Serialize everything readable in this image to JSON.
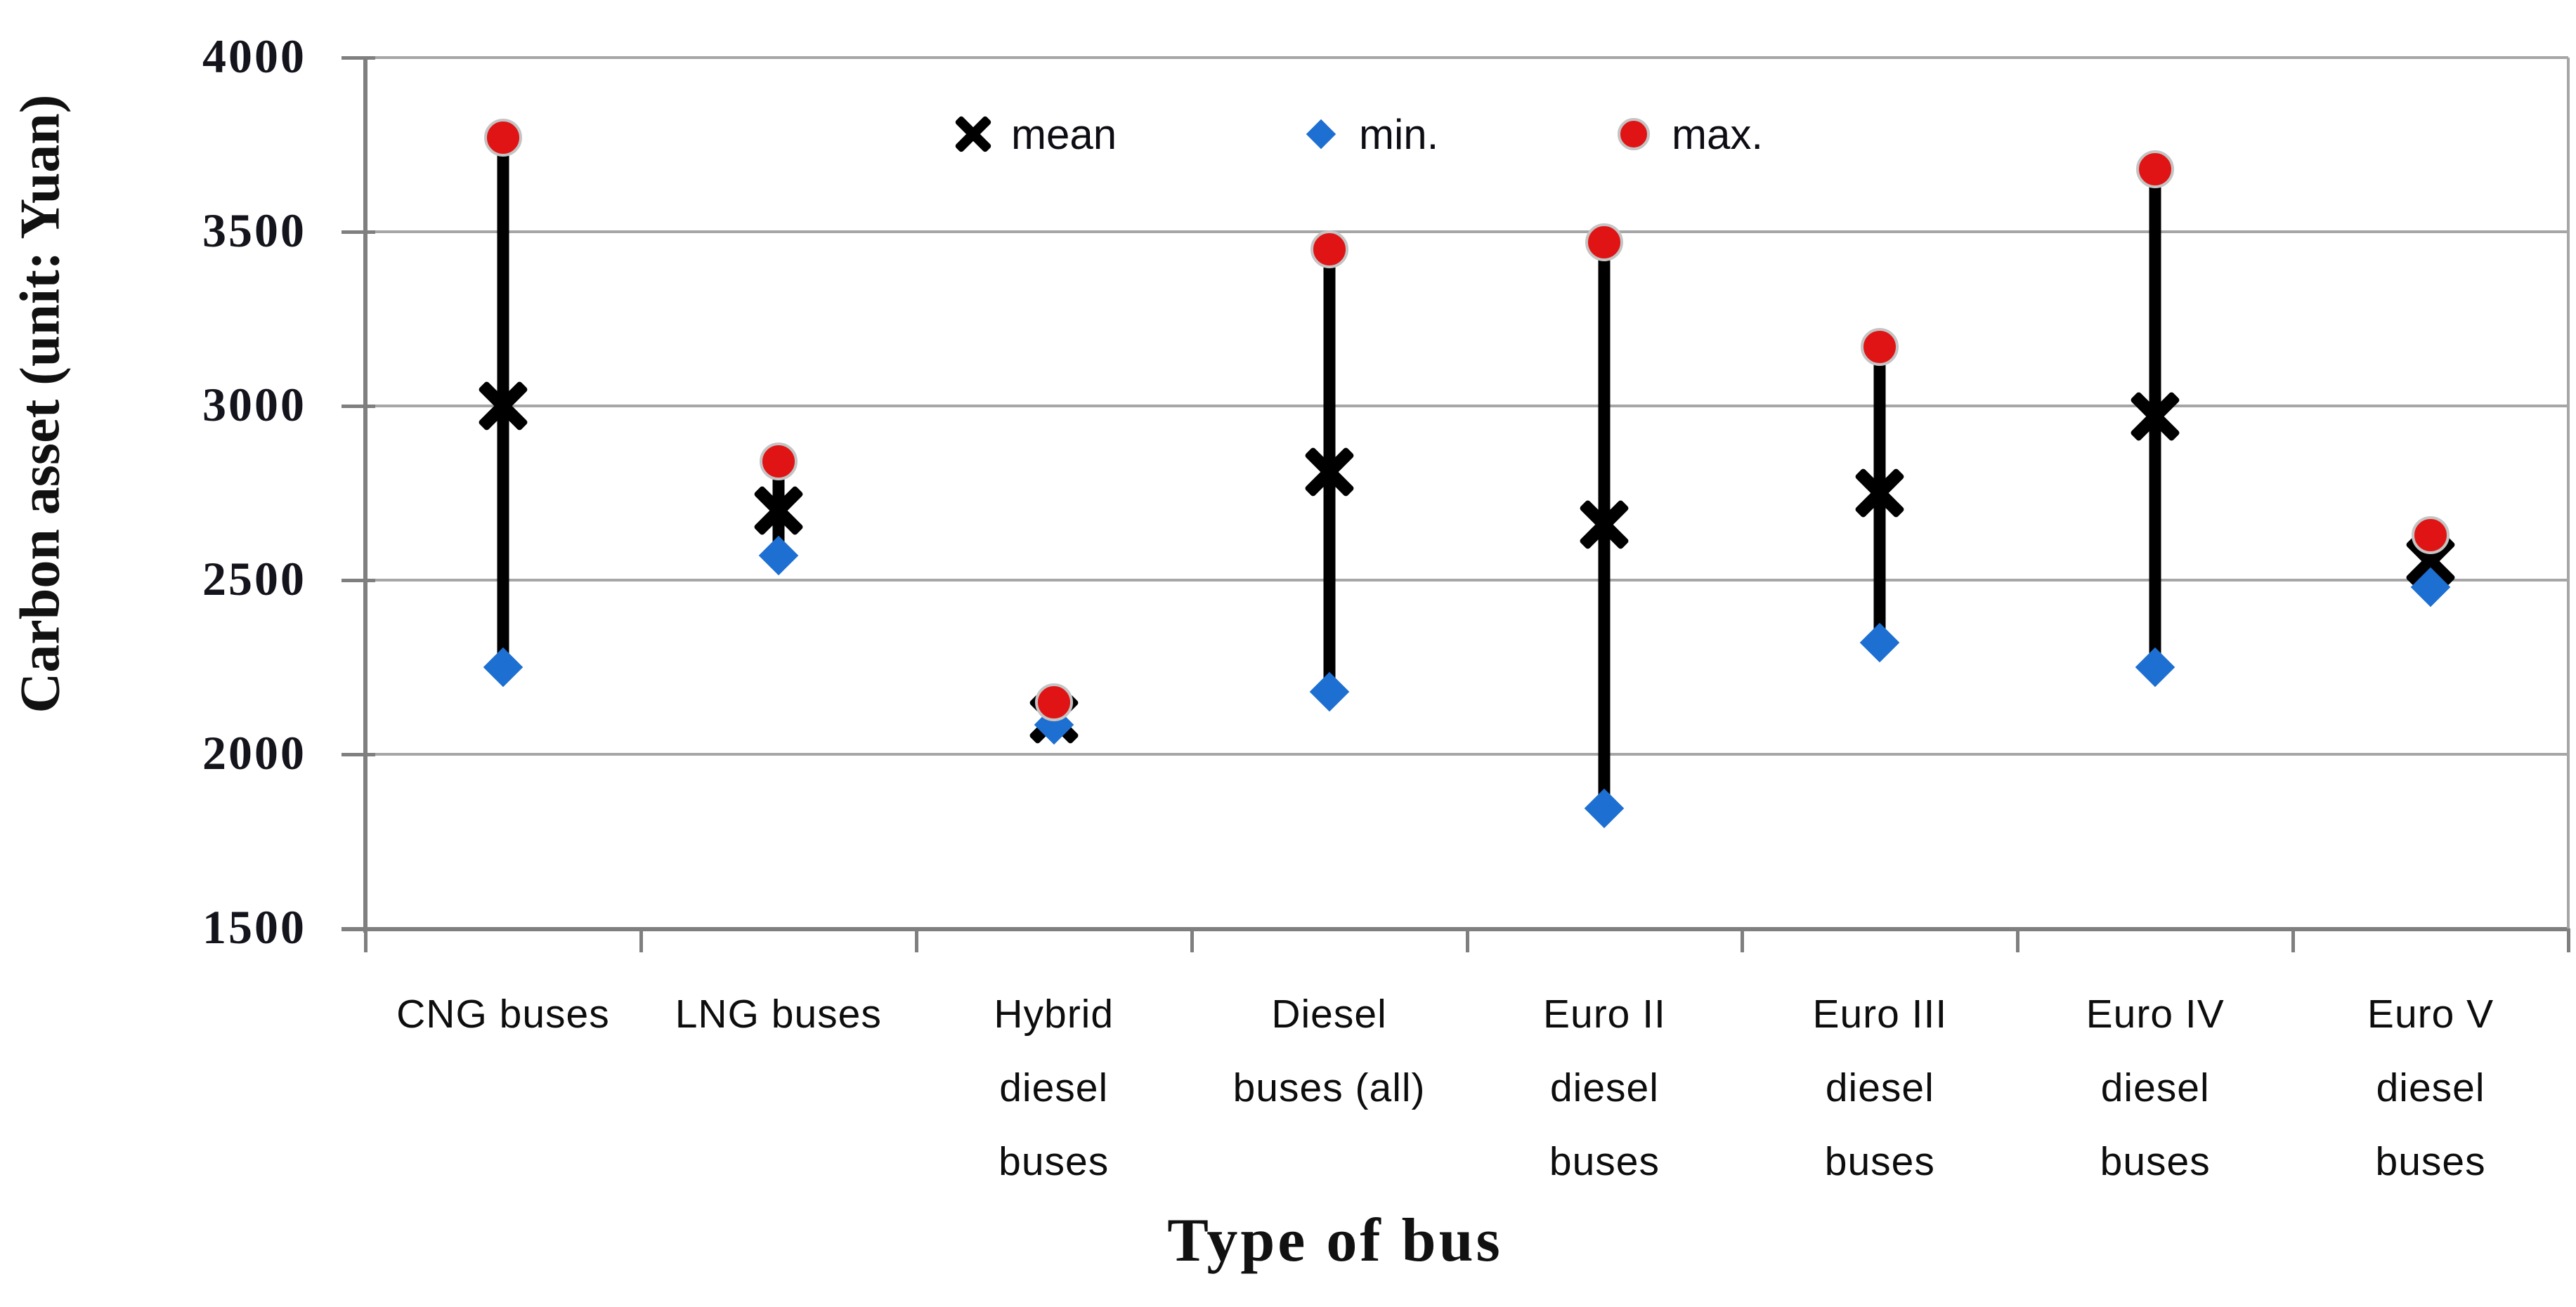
{
  "chart_data": {
    "type": "scatter",
    "title": "",
    "xlabel": "Type of bus",
    "ylabel": "Carbon asset (unit: Yuan)",
    "ylim": [
      1500,
      4000
    ],
    "ytick_step": 500,
    "yticks": [
      4000,
      3500,
      3000,
      2500,
      2000,
      1500
    ],
    "grid": "horizontal",
    "legend_position": "top-center",
    "categories": [
      "CNG buses",
      "LNG buses",
      "Hybrid diesel buses",
      "Diesel buses (all)",
      "Euro II diesel buses",
      "Euro III diesel buses",
      "Euro IV diesel buses",
      "Euro V diesel buses"
    ],
    "category_label_lines": [
      [
        "CNG buses"
      ],
      [
        "LNG buses"
      ],
      [
        "Hybrid",
        "diesel",
        "buses"
      ],
      [
        "Diesel",
        "buses (all)"
      ],
      [
        "Euro II",
        "diesel",
        "buses"
      ],
      [
        "Euro III",
        "diesel",
        "buses"
      ],
      [
        "Euro IV",
        "diesel",
        "buses"
      ],
      [
        "Euro V",
        "diesel",
        "buses"
      ]
    ],
    "series": [
      {
        "name": "mean",
        "marker": "x-cross",
        "color": "#000000",
        "values": [
          3000,
          2700,
          2100,
          2810,
          2660,
          2750,
          2970,
          2555
        ]
      },
      {
        "name": "min.",
        "marker": "diamond",
        "color": "#1d6fd1",
        "values": [
          2250,
          2570,
          2085,
          2180,
          1845,
          2320,
          2250,
          2480
        ]
      },
      {
        "name": "max.",
        "marker": "circle",
        "color": "#e01414",
        "values": [
          3770,
          2840,
          2150,
          3450,
          3470,
          3170,
          3680,
          2630
        ]
      }
    ],
    "error_bars": {
      "from": "min.",
      "to": "max.",
      "color": "#000000"
    },
    "gridline_color": "#a6a6a6",
    "axis_color": "#7f7f7f"
  }
}
